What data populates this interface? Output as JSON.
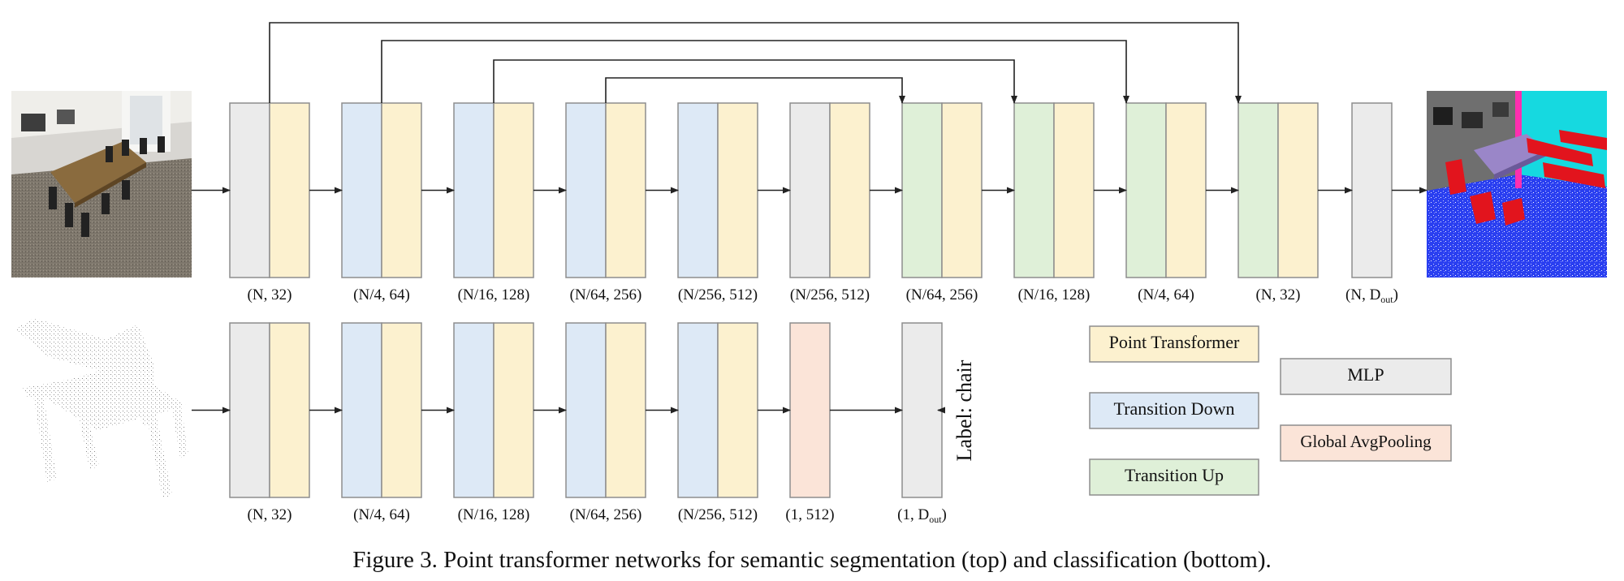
{
  "colors": {
    "mlp": "#ebebeb",
    "point_transformer": "#fcf1cf",
    "transition_down": "#dde9f6",
    "transition_up": "#dff0d8",
    "global_avg_pooling": "#fbe4d8"
  },
  "segmentation": {
    "stages": [
      {
        "blocks": [
          "mlp",
          "point_transformer"
        ],
        "dim": "(N, 32)"
      },
      {
        "blocks": [
          "transition_down",
          "point_transformer"
        ],
        "dim": "(N/4, 64)"
      },
      {
        "blocks": [
          "transition_down",
          "point_transformer"
        ],
        "dim": "(N/16, 128)"
      },
      {
        "blocks": [
          "transition_down",
          "point_transformer"
        ],
        "dim": "(N/64, 256)"
      },
      {
        "blocks": [
          "transition_down",
          "point_transformer"
        ],
        "dim": "(N/256, 512)"
      },
      {
        "blocks": [
          "mlp",
          "point_transformer"
        ],
        "dim": "(N/256, 512)"
      },
      {
        "blocks": [
          "transition_up",
          "point_transformer"
        ],
        "dim": "(N/64, 256)"
      },
      {
        "blocks": [
          "transition_up",
          "point_transformer"
        ],
        "dim": "(N/16, 128)"
      },
      {
        "blocks": [
          "transition_up",
          "point_transformer"
        ],
        "dim": "(N/4, 64)"
      },
      {
        "blocks": [
          "transition_up",
          "point_transformer"
        ],
        "dim": "(N, 32)"
      },
      {
        "blocks": [
          "mlp"
        ],
        "dim": "(N, D",
        "dim_sub": "out",
        "dim_end": ")"
      }
    ],
    "skip_connections": [
      [
        0,
        9
      ],
      [
        1,
        8
      ],
      [
        2,
        7
      ],
      [
        3,
        6
      ]
    ],
    "input_image": "room-scene-photo",
    "output_image": "segmented-room-scene"
  },
  "classification": {
    "stages": [
      {
        "blocks": [
          "mlp",
          "point_transformer"
        ],
        "dim": "(N, 32)"
      },
      {
        "blocks": [
          "transition_down",
          "point_transformer"
        ],
        "dim": "(N/4, 64)"
      },
      {
        "blocks": [
          "transition_down",
          "point_transformer"
        ],
        "dim": "(N/16, 128)"
      },
      {
        "blocks": [
          "transition_down",
          "point_transformer"
        ],
        "dim": "(N/64, 256)"
      },
      {
        "blocks": [
          "transition_down",
          "point_transformer"
        ],
        "dim": "(N/256, 512)"
      },
      {
        "blocks": [
          "global_avg_pooling"
        ],
        "dim": "(1, 512)"
      },
      {
        "blocks": [
          "mlp"
        ],
        "dim": "(1, D",
        "dim_sub": "out",
        "dim_end": ")"
      }
    ],
    "input_image": "chair-point-cloud",
    "output_label": "Label: chair"
  },
  "legend": {
    "point_transformer": "Point Transformer",
    "transition_down": "Transition Down",
    "transition_up": "Transition Up",
    "mlp": "MLP",
    "global_avg_pooling": "Global AvgPooling"
  },
  "caption": "Figure 3. Point transformer networks for semantic segmentation (top) and classification (bottom)."
}
